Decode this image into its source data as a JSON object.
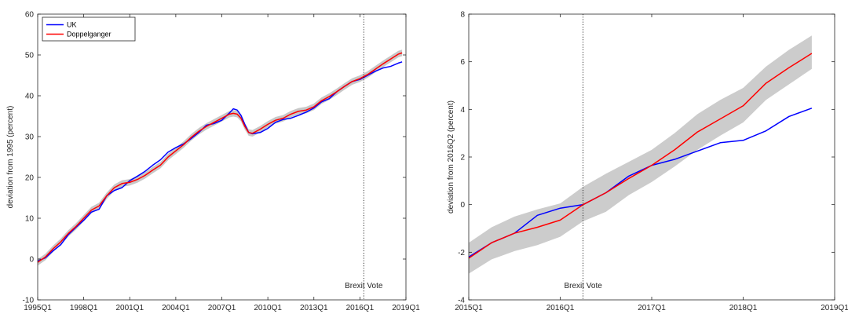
{
  "chart_data": [
    {
      "type": "line",
      "title": "",
      "xlabel": "",
      "ylabel": "deviation from 1995 (percent)",
      "xlim": [
        1995.0,
        2019.0
      ],
      "ylim": [
        -10,
        60
      ],
      "yticks": [
        -10,
        0,
        10,
        20,
        30,
        40,
        50,
        60
      ],
      "xticks": [
        {
          "value": 1995.0,
          "label": "1995Q1"
        },
        {
          "value": 1998.0,
          "label": "1998Q1"
        },
        {
          "value": 2001.0,
          "label": "2001Q1"
        },
        {
          "value": 2004.0,
          "label": "2004Q1"
        },
        {
          "value": 2007.0,
          "label": "2007Q1"
        },
        {
          "value": 2010.0,
          "label": "2010Q1"
        },
        {
          "value": 2013.0,
          "label": "2013Q1"
        },
        {
          "value": 2016.0,
          "label": "2016Q1"
        },
        {
          "value": 2019.0,
          "label": "2019Q1"
        }
      ],
      "grid": false,
      "legend_position": "top-left",
      "vline": {
        "x": 2016.25,
        "label": "Brexit Vote"
      },
      "series": [
        {
          "name": "UK",
          "color": "#0000ff",
          "points": [
            [
              1995.0,
              -0.5
            ],
            [
              1995.5,
              0.3
            ],
            [
              1996.0,
              2.0
            ],
            [
              1996.5,
              3.5
            ],
            [
              1997.0,
              6.0
            ],
            [
              1997.5,
              7.8
            ],
            [
              1998.0,
              9.5
            ],
            [
              1998.5,
              11.5
            ],
            [
              1999.0,
              12.2
            ],
            [
              1999.5,
              15.5
            ],
            [
              2000.0,
              16.8
            ],
            [
              2000.5,
              17.5
            ],
            [
              2001.0,
              19.2
            ],
            [
              2001.5,
              20.3
            ],
            [
              2002.0,
              21.5
            ],
            [
              2002.5,
              23.0
            ],
            [
              2003.0,
              24.3
            ],
            [
              2003.5,
              26.2
            ],
            [
              2004.0,
              27.3
            ],
            [
              2004.5,
              28.2
            ],
            [
              2005.0,
              29.5
            ],
            [
              2005.5,
              31.0
            ],
            [
              2006.0,
              32.8
            ],
            [
              2006.5,
              33.2
            ],
            [
              2007.0,
              34.0
            ],
            [
              2007.5,
              35.8
            ],
            [
              2007.75,
              36.8
            ],
            [
              2008.0,
              36.5
            ],
            [
              2008.25,
              35.2
            ],
            [
              2008.5,
              33.0
            ],
            [
              2008.75,
              31.0
            ],
            [
              2009.0,
              30.7
            ],
            [
              2009.5,
              31.0
            ],
            [
              2010.0,
              32.0
            ],
            [
              2010.5,
              33.5
            ],
            [
              2011.0,
              34.2
            ],
            [
              2011.5,
              34.5
            ],
            [
              2012.0,
              35.2
            ],
            [
              2012.5,
              36.0
            ],
            [
              2013.0,
              37.0
            ],
            [
              2013.5,
              38.5
            ],
            [
              2014.0,
              39.3
            ],
            [
              2014.5,
              41.0
            ],
            [
              2015.0,
              42.3
            ],
            [
              2015.5,
              43.5
            ],
            [
              2016.0,
              44.0
            ],
            [
              2016.5,
              45.0
            ],
            [
              2017.0,
              46.0
            ],
            [
              2017.5,
              46.8
            ],
            [
              2018.0,
              47.2
            ],
            [
              2018.5,
              48.0
            ],
            [
              2018.75,
              48.3
            ]
          ]
        },
        {
          "name": "Doppelganger",
          "color": "#ff0000",
          "band_color": "#c8c8c8",
          "band_halfwidth": 0.8,
          "points": [
            [
              1995.0,
              -0.8
            ],
            [
              1995.5,
              0.5
            ],
            [
              1996.0,
              2.5
            ],
            [
              1996.5,
              4.2
            ],
            [
              1997.0,
              6.3
            ],
            [
              1997.5,
              8.0
            ],
            [
              1998.0,
              10.0
            ],
            [
              1998.5,
              12.0
            ],
            [
              1999.0,
              13.0
            ],
            [
              1999.5,
              15.5
            ],
            [
              2000.0,
              17.5
            ],
            [
              2000.5,
              18.5
            ],
            [
              2001.0,
              18.8
            ],
            [
              2001.5,
              19.5
            ],
            [
              2002.0,
              20.5
            ],
            [
              2002.5,
              21.8
            ],
            [
              2003.0,
              23.0
            ],
            [
              2003.5,
              25.0
            ],
            [
              2004.0,
              26.5
            ],
            [
              2004.5,
              28.0
            ],
            [
              2005.0,
              29.8
            ],
            [
              2005.5,
              31.3
            ],
            [
              2006.0,
              32.5
            ],
            [
              2006.5,
              33.5
            ],
            [
              2007.0,
              34.5
            ],
            [
              2007.5,
              35.5
            ],
            [
              2007.75,
              35.7
            ],
            [
              2008.0,
              35.5
            ],
            [
              2008.25,
              34.5
            ],
            [
              2008.5,
              32.5
            ],
            [
              2008.75,
              31.0
            ],
            [
              2009.0,
              30.8
            ],
            [
              2009.5,
              31.8
            ],
            [
              2010.0,
              33.0
            ],
            [
              2010.5,
              34.0
            ],
            [
              2011.0,
              34.5
            ],
            [
              2011.5,
              35.5
            ],
            [
              2012.0,
              36.2
            ],
            [
              2012.5,
              36.5
            ],
            [
              2013.0,
              37.3
            ],
            [
              2013.5,
              38.8
            ],
            [
              2014.0,
              39.8
            ],
            [
              2014.5,
              41.0
            ],
            [
              2015.0,
              42.3
            ],
            [
              2015.5,
              43.5
            ],
            [
              2016.0,
              44.2
            ],
            [
              2016.5,
              45.2
            ],
            [
              2017.0,
              46.5
            ],
            [
              2017.5,
              47.8
            ],
            [
              2018.0,
              49.0
            ],
            [
              2018.5,
              50.2
            ],
            [
              2018.75,
              50.5
            ]
          ]
        }
      ]
    },
    {
      "type": "line",
      "title": "",
      "xlabel": "",
      "ylabel": "deviation from 2016Q2 (percent)",
      "xlim": [
        2015.0,
        2019.0
      ],
      "ylim": [
        -4,
        8
      ],
      "yticks": [
        -4,
        -2,
        0,
        2,
        4,
        6,
        8
      ],
      "xticks": [
        {
          "value": 2015.0,
          "label": "2015Q1"
        },
        {
          "value": 2016.0,
          "label": "2016Q1"
        },
        {
          "value": 2017.0,
          "label": "2017Q1"
        },
        {
          "value": 2018.0,
          "label": "2018Q1"
        },
        {
          "value": 2019.0,
          "label": "2019Q1"
        }
      ],
      "grid": false,
      "vline": {
        "x": 2016.25,
        "label": "Brexit Vote"
      },
      "series": [
        {
          "name": "UK",
          "color": "#0000ff",
          "points": [
            [
              2015.0,
              -2.2
            ],
            [
              2015.25,
              -1.6
            ],
            [
              2015.5,
              -1.2
            ],
            [
              2015.75,
              -0.45
            ],
            [
              2016.0,
              -0.15
            ],
            [
              2016.25,
              0.0
            ],
            [
              2016.5,
              0.5
            ],
            [
              2016.75,
              1.2
            ],
            [
              2017.0,
              1.65
            ],
            [
              2017.25,
              1.9
            ],
            [
              2017.5,
              2.25
            ],
            [
              2017.75,
              2.6
            ],
            [
              2018.0,
              2.7
            ],
            [
              2018.25,
              3.1
            ],
            [
              2018.5,
              3.7
            ],
            [
              2018.75,
              4.05
            ]
          ]
        },
        {
          "name": "Doppelganger",
          "color": "#ff0000",
          "band_color": "#cccccc",
          "points": [
            [
              2015.0,
              -2.25
            ],
            [
              2015.25,
              -1.6
            ],
            [
              2015.5,
              -1.2
            ],
            [
              2015.75,
              -0.95
            ],
            [
              2016.0,
              -0.65
            ],
            [
              2016.25,
              0.0
            ],
            [
              2016.5,
              0.5
            ],
            [
              2016.75,
              1.1
            ],
            [
              2017.0,
              1.65
            ],
            [
              2017.25,
              2.3
            ],
            [
              2017.5,
              3.05
            ],
            [
              2017.75,
              3.6
            ],
            [
              2018.0,
              4.15
            ],
            [
              2018.25,
              5.1
            ],
            [
              2018.5,
              5.75
            ],
            [
              2018.75,
              6.35
            ]
          ],
          "band_upper": [
            [
              2015.0,
              -1.6
            ],
            [
              2015.25,
              -0.95
            ],
            [
              2015.5,
              -0.5
            ],
            [
              2015.75,
              -0.2
            ],
            [
              2016.0,
              0.05
            ],
            [
              2016.25,
              0.75
            ],
            [
              2016.5,
              1.3
            ],
            [
              2016.75,
              1.8
            ],
            [
              2017.0,
              2.3
            ],
            [
              2017.25,
              3.0
            ],
            [
              2017.5,
              3.8
            ],
            [
              2017.75,
              4.4
            ],
            [
              2018.0,
              4.9
            ],
            [
              2018.25,
              5.8
            ],
            [
              2018.5,
              6.5
            ],
            [
              2018.75,
              7.1
            ]
          ],
          "band_lower": [
            [
              2015.0,
              -2.9
            ],
            [
              2015.25,
              -2.3
            ],
            [
              2015.5,
              -1.95
            ],
            [
              2015.75,
              -1.7
            ],
            [
              2016.0,
              -1.35
            ],
            [
              2016.25,
              -0.7
            ],
            [
              2016.5,
              -0.3
            ],
            [
              2016.75,
              0.4
            ],
            [
              2017.0,
              0.95
            ],
            [
              2017.25,
              1.6
            ],
            [
              2017.5,
              2.3
            ],
            [
              2017.75,
              2.9
            ],
            [
              2018.0,
              3.45
            ],
            [
              2018.25,
              4.4
            ],
            [
              2018.5,
              5.05
            ],
            [
              2018.75,
              5.7
            ]
          ]
        }
      ]
    }
  ]
}
